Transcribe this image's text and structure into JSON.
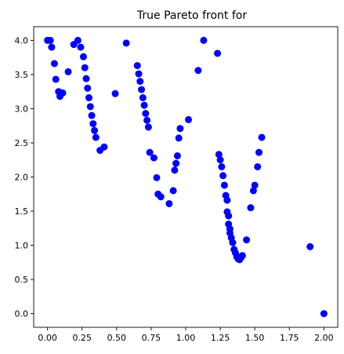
{
  "chart_data": {
    "type": "scatter",
    "title": "True Pareto front for",
    "xlabel": "",
    "ylabel": "",
    "xlim": [
      -0.1,
      2.1
    ],
    "ylim": [
      -0.2,
      4.2
    ],
    "xticks": [
      "0.00",
      "0.25",
      "0.50",
      "0.75",
      "1.00",
      "1.25",
      "1.50",
      "1.75",
      "2.00"
    ],
    "xtick_values": [
      0,
      0.25,
      0.5,
      0.75,
      1.0,
      1.25,
      1.5,
      1.75,
      2.0
    ],
    "yticks": [
      "0.0",
      "0.5",
      "1.0",
      "1.5",
      "2.0",
      "2.5",
      "3.0",
      "3.5",
      "4.0"
    ],
    "ytick_values": [
      0,
      0.5,
      1.0,
      1.5,
      2.0,
      2.5,
      3.0,
      3.5,
      4.0
    ],
    "grid": false,
    "marker_color": "#0000ff",
    "series": [
      {
        "x": [
          0.0,
          0.02,
          0.03,
          0.05,
          0.06,
          0.08,
          0.09,
          0.11,
          0.15,
          0.19,
          0.22,
          0.24,
          0.26,
          0.27,
          0.28,
          0.29,
          0.3,
          0.31,
          0.32,
          0.33,
          0.34,
          0.35,
          0.38,
          0.41,
          0.49,
          0.57,
          0.65,
          0.66,
          0.67,
          0.68,
          0.69,
          0.7,
          0.71,
          0.72,
          0.73,
          0.74,
          0.77,
          0.79,
          0.8,
          0.82,
          0.88,
          0.91,
          0.92,
          0.93,
          0.94,
          0.95,
          0.96,
          1.02,
          1.09,
          1.13,
          1.23,
          1.24,
          1.25,
          1.26,
          1.27,
          1.28,
          1.29,
          1.3,
          1.3,
          1.31,
          1.31,
          1.32,
          1.32,
          1.33,
          1.34,
          1.35,
          1.36,
          1.37,
          1.38,
          1.39,
          1.4,
          1.41,
          1.44,
          1.47,
          1.49,
          1.5,
          1.52,
          1.53,
          1.55,
          1.9,
          2.0
        ],
        "y": [
          4.0,
          4.0,
          3.9,
          3.66,
          3.43,
          3.25,
          3.18,
          3.23,
          3.54,
          3.94,
          4.0,
          3.9,
          3.76,
          3.6,
          3.44,
          3.3,
          3.16,
          3.03,
          2.9,
          2.78,
          2.68,
          2.58,
          2.39,
          2.44,
          3.22,
          3.96,
          3.63,
          3.51,
          3.4,
          3.28,
          3.16,
          3.05,
          2.93,
          2.83,
          2.73,
          2.36,
          2.28,
          1.99,
          1.75,
          1.71,
          1.61,
          1.8,
          2.1,
          2.2,
          2.31,
          2.57,
          2.71,
          2.84,
          3.56,
          4.0,
          3.81,
          2.33,
          2.25,
          2.15,
          2.02,
          1.88,
          1.73,
          1.66,
          1.49,
          1.43,
          1.31,
          1.24,
          1.18,
          1.11,
          1.04,
          0.94,
          0.89,
          0.83,
          0.8,
          0.79,
          0.82,
          0.85,
          1.08,
          1.55,
          1.8,
          1.88,
          2.15,
          2.36,
          2.58,
          0.98,
          0.0
        ]
      }
    ]
  }
}
